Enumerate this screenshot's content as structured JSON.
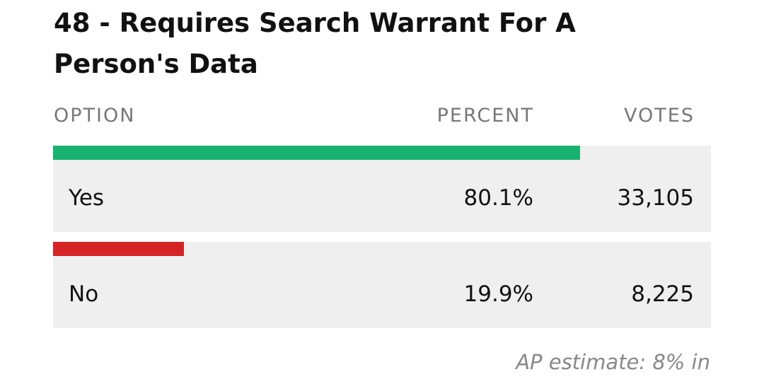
{
  "title": "48 - Requires Search Warrant For A Person's Data",
  "table": {
    "headers": [
      "OPTION",
      "PERCENT",
      "VOTES"
    ],
    "rows": [
      {
        "option": "Yes",
        "percent": 80.1,
        "percent_label": "80.1%",
        "votes": 33105,
        "votes_label": "33,105",
        "color": "#17b26f"
      },
      {
        "option": "No",
        "percent": 19.9,
        "percent_label": "19.9%",
        "votes": 8225,
        "votes_label": "8,225",
        "color": "#d42426"
      }
    ]
  },
  "footer": "AP estimate: 8% in"
}
